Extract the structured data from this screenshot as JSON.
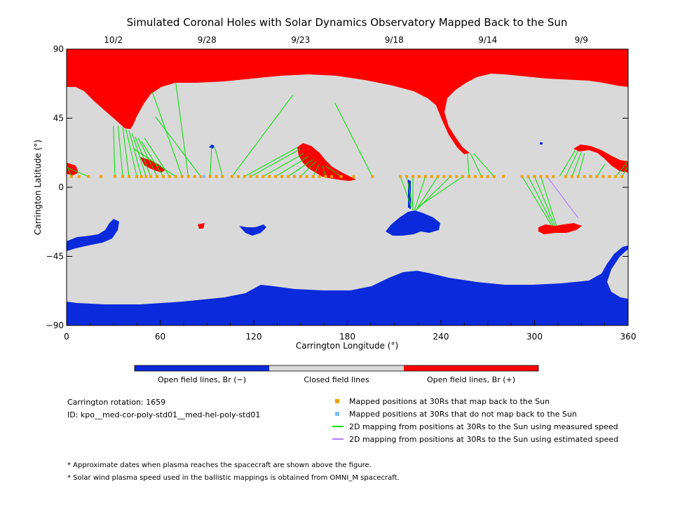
{
  "chart_data": {
    "type": "map",
    "title": "Simulated Coronal Holes with Solar Dynamics Observatory Mapped Back to the Sun",
    "xlabel": "Carrington Longitude (°)",
    "ylabel": "Carrington Latitude (°)",
    "xlim": [
      0,
      360
    ],
    "ylim": [
      -90,
      90
    ],
    "x_ticks": [
      0,
      60,
      120,
      180,
      240,
      300,
      360
    ],
    "y_ticks": [
      -90,
      -45,
      0,
      45,
      90
    ],
    "y_tick_labels": [
      "−90",
      "−45",
      "0",
      "45",
      "90"
    ],
    "top_axis_dates": [
      {
        "label": "10/2",
        "lon": 30
      },
      {
        "label": "9/28",
        "lon": 90
      },
      {
        "label": "9/23",
        "lon": 150
      },
      {
        "label": "9/18",
        "lon": 210
      },
      {
        "label": "9/14",
        "lon": 270
      },
      {
        "label": "9/9",
        "lon": 330
      }
    ],
    "colors": {
      "open_negative": "#0a2adc",
      "closed": "#d9d9d9",
      "open_positive": "#ff0000",
      "measured_mapping": "#00e000",
      "estimated_mapping": "#b07cff",
      "mapped_point": "#f0a000",
      "unmapped_point": "#80c0ff"
    },
    "colorbar": [
      {
        "label": "Open field lines, Br (−)",
        "color": "#0a2adc"
      },
      {
        "label": "Closed field lines",
        "color": "#d9d9d9"
      },
      {
        "label": "Open field lines, Br (+)",
        "color": "#ff0000"
      }
    ],
    "mapped_positions_lat": 7,
    "mapped_positions_lon": [
      3,
      8,
      14,
      22,
      31,
      36,
      40,
      45,
      48,
      51,
      54,
      58,
      62,
      66,
      70,
      74,
      78,
      82,
      86,
      92,
      96,
      100,
      106,
      110,
      114,
      118,
      122,
      126,
      130,
      134,
      138,
      142,
      146,
      150,
      154,
      158,
      162,
      166,
      170,
      176,
      184,
      196,
      214,
      218,
      222,
      226,
      230,
      234,
      238,
      242,
      246,
      250,
      254,
      258,
      262,
      266,
      270,
      274,
      280,
      292,
      296,
      300,
      304,
      308,
      312,
      320,
      324,
      328,
      332,
      336,
      340,
      344,
      348,
      352,
      356
    ],
    "unmapped_positions_lon": [
      88
    ],
    "measured_mappings": [
      {
        "from": [
          3,
          7
        ],
        "to": [
          0,
          15
        ]
      },
      {
        "from": [
          14,
          7
        ],
        "to": [
          0,
          13
        ]
      },
      {
        "from": [
          31,
          7
        ],
        "to": [
          30,
          40
        ]
      },
      {
        "from": [
          36,
          7
        ],
        "to": [
          33,
          40
        ]
      },
      {
        "from": [
          40,
          7
        ],
        "to": [
          36,
          39
        ]
      },
      {
        "from": [
          45,
          7
        ],
        "to": [
          38,
          38
        ]
      },
      {
        "from": [
          48,
          7
        ],
        "to": [
          40,
          37
        ]
      },
      {
        "from": [
          51,
          7
        ],
        "to": [
          42,
          35
        ]
      },
      {
        "from": [
          54,
          7
        ],
        "to": [
          44,
          33
        ]
      },
      {
        "from": [
          58,
          7
        ],
        "to": [
          46,
          32
        ]
      },
      {
        "from": [
          62,
          7
        ],
        "to": [
          48,
          30
        ]
      },
      {
        "from": [
          66,
          7
        ],
        "to": [
          50,
          32
        ]
      },
      {
        "from": [
          70,
          7
        ],
        "to": [
          43,
          25
        ]
      },
      {
        "from": [
          74,
          7
        ],
        "to": [
          55,
          62
        ]
      },
      {
        "from": [
          78,
          7
        ],
        "to": [
          70,
          68
        ]
      },
      {
        "from": [
          86,
          7
        ],
        "to": [
          57,
          46
        ]
      },
      {
        "from": [
          92,
          7
        ],
        "to": [
          93,
          26
        ]
      },
      {
        "from": [
          100,
          7
        ],
        "to": [
          95,
          26
        ]
      },
      {
        "from": [
          106,
          7
        ],
        "to": [
          145,
          60
        ]
      },
      {
        "from": [
          114,
          7
        ],
        "to": [
          148,
          26
        ]
      },
      {
        "from": [
          118,
          7
        ],
        "to": [
          150,
          25
        ]
      },
      {
        "from": [
          126,
          7
        ],
        "to": [
          152,
          22
        ]
      },
      {
        "from": [
          134,
          7
        ],
        "to": [
          155,
          20
        ]
      },
      {
        "from": [
          142,
          7
        ],
        "to": [
          158,
          18
        ]
      },
      {
        "from": [
          150,
          7
        ],
        "to": [
          160,
          17
        ]
      },
      {
        "from": [
          158,
          7
        ],
        "to": [
          162,
          15
        ]
      },
      {
        "from": [
          166,
          7
        ],
        "to": [
          164,
          14
        ]
      },
      {
        "from": [
          176,
          7
        ],
        "to": [
          166,
          14
        ]
      },
      {
        "from": [
          196,
          7
        ],
        "to": [
          172,
          55
        ]
      },
      {
        "from": [
          214,
          7
        ],
        "to": [
          221,
          -13
        ]
      },
      {
        "from": [
          218,
          7
        ],
        "to": [
          222,
          -13
        ]
      },
      {
        "from": [
          222,
          7
        ],
        "to": [
          222,
          -15
        ]
      },
      {
        "from": [
          230,
          7
        ],
        "to": [
          223,
          -15
        ]
      },
      {
        "from": [
          238,
          7
        ],
        "to": [
          224,
          -15
        ]
      },
      {
        "from": [
          246,
          7
        ],
        "to": [
          225,
          -14
        ]
      },
      {
        "from": [
          254,
          7
        ],
        "to": [
          225,
          -13
        ]
      },
      {
        "from": [
          258,
          7
        ],
        "to": [
          257,
          22
        ]
      },
      {
        "from": [
          266,
          7
        ],
        "to": [
          259,
          22
        ]
      },
      {
        "from": [
          274,
          7
        ],
        "to": [
          261,
          22
        ]
      },
      {
        "from": [
          292,
          7
        ],
        "to": [
          311,
          -25
        ]
      },
      {
        "from": [
          296,
          7
        ],
        "to": [
          312,
          -25
        ]
      },
      {
        "from": [
          300,
          7
        ],
        "to": [
          313,
          -25
        ]
      },
      {
        "from": [
          304,
          7
        ],
        "to": [
          314,
          -25
        ]
      },
      {
        "from": [
          316,
          7
        ],
        "to": [
          326,
          24
        ]
      },
      {
        "from": [
          320,
          7
        ],
        "to": [
          328,
          24
        ]
      },
      {
        "from": [
          324,
          7
        ],
        "to": [
          330,
          23
        ]
      },
      {
        "from": [
          328,
          7
        ],
        "to": [
          332,
          22
        ]
      },
      {
        "from": [
          340,
          7
        ],
        "to": [
          345,
          15
        ]
      },
      {
        "from": [
          352,
          7
        ],
        "to": [
          360,
          17
        ]
      },
      {
        "from": [
          356,
          7
        ],
        "to": [
          360,
          14
        ]
      }
    ],
    "estimated_mappings": [
      {
        "from": [
          308,
          7
        ],
        "to": [
          328,
          -20
        ]
      }
    ]
  },
  "legend_items": [
    {
      "label": "Mapped positions at 30Rs that map back to the Sun",
      "color": "#f0a000",
      "kind": "square"
    },
    {
      "label": "Mapped positions at 30Rs that do not map back to the Sun",
      "color": "#80c0ff",
      "kind": "square"
    },
    {
      "label": "2D mapping from positions at 30Rs to the Sun using measured speed",
      "color": "#00e000",
      "kind": "line"
    },
    {
      "label": "2D mapping from positions at 30Rs to the Sun using estimated speed",
      "color": "#b07cff",
      "kind": "line"
    }
  ],
  "info": {
    "rotation": "Carrington rotation: 1659",
    "id": "ID: kpo__med-cor-poly-std01__med-hel-poly-std01"
  },
  "notes": [
    "* Approximate dates when plasma reaches the spacecraft are shown above the figure.",
    "* Solar wind plasma speed used in the ballistic mappings is obtained from OMNI_M spacecraft."
  ]
}
